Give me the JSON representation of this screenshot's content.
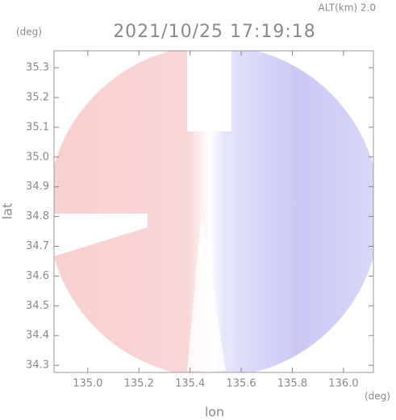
{
  "chart_data": {
    "type": "radar-map",
    "title": "2021/10/25 17:19:18",
    "altitude_label": "ALT(km) 2.0",
    "x_label": "lon",
    "y_label": "lat",
    "x_unit": "(deg)",
    "y_unit": "(deg)",
    "xlim": [
      134.868,
      136.117
    ],
    "ylim": [
      34.276,
      35.357
    ],
    "xticks": [
      {
        "value": 135,
        "label": "135.0"
      },
      135.2,
      135.4,
      135.6,
      135.8,
      {
        "value": 136,
        "label": "136.0"
      }
    ],
    "yticks": [
      34.3,
      34.4,
      34.5,
      34.6,
      34.7,
      34.8,
      34.9,
      {
        "value": 35,
        "label": "35.0"
      },
      35.1,
      35.2,
      35.3
    ]
  }
}
